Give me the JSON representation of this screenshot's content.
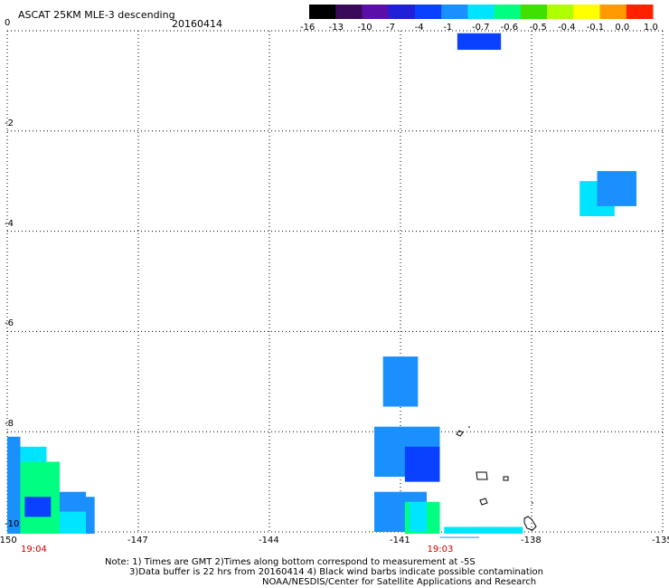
{
  "header": {
    "product_title": "ASCAT 25KM MLE-3 descending",
    "date": "20160414"
  },
  "colorbar": {
    "labels": [
      "-16",
      "-13",
      "-10",
      "-7",
      "-4",
      "-1",
      "-0.7",
      "-0.6",
      "-0.5",
      "-0.4",
      "-0.1",
      "0.0",
      "1.0"
    ],
    "colors": [
      "#000000",
      "#3a0a5a",
      "#5a10a8",
      "#2020d8",
      "#0a40ff",
      "#1a90ff",
      "#00e5ff",
      "#00ff80",
      "#40e000",
      "#b0ff00",
      "#ffff00",
      "#ff9a00",
      "#ff2000"
    ]
  },
  "map": {
    "x_ticks": [
      "-150",
      "-147",
      "-144",
      "-141",
      "-138",
      "-135"
    ],
    "y_ticks": [
      "0",
      "-2",
      "-4",
      "-6",
      "-8",
      "-10"
    ],
    "lon_range": [
      -150,
      -135
    ],
    "lat_range": [
      -10,
      0
    ],
    "grid": "dotted",
    "time_labels": [
      {
        "lon": -150,
        "text": "19:04"
      },
      {
        "lon": -140.7,
        "text": "19:03"
      }
    ],
    "cells": [
      {
        "lon": [
          -139.7,
          -138.7
        ],
        "lat": [
          -0.38,
          -0.05
        ],
        "color": "#0a40ff"
      },
      {
        "lon": [
          -136.9,
          -136.1
        ],
        "lat": [
          -3.0,
          -3.7
        ],
        "color": "#00e5ff"
      },
      {
        "lon": [
          -136.5,
          -135.6
        ],
        "lat": [
          -2.8,
          -3.5
        ],
        "color": "#1a90ff"
      },
      {
        "lon": [
          -141.4,
          -140.6
        ],
        "lat": [
          -6.5,
          -7.5
        ],
        "color": "#1a90ff"
      },
      {
        "lon": [
          -141.6,
          -140.1
        ],
        "lat": [
          -7.9,
          -8.9
        ],
        "color": "#1a90ff"
      },
      {
        "lon": [
          -140.9,
          -140.1
        ],
        "lat": [
          -8.3,
          -9.0
        ],
        "color": "#0a40ff"
      },
      {
        "lon": [
          -141.6,
          -140.4
        ],
        "lat": [
          -9.2,
          -10.0
        ],
        "color": "#1a90ff"
      },
      {
        "lon": [
          -140.9,
          -140.1
        ],
        "lat": [
          -9.4,
          -10.1
        ],
        "color": "#00ff80"
      },
      {
        "lon": [
          -140.8,
          -140.4
        ],
        "lat": [
          -9.4,
          -10.0
        ],
        "color": "#00e5ff"
      },
      {
        "lon": [
          -140.0,
          -138.6
        ],
        "lat": [
          -9.9,
          -10.1
        ],
        "color": "#00e5ff"
      },
      {
        "lon": [
          -140.1,
          -139.2
        ],
        "lat": [
          -10.1,
          -10.6
        ],
        "color": "#1a90ff"
      },
      {
        "lon": [
          -139.3,
          -138.2
        ],
        "lat": [
          -9.9,
          -10.6
        ],
        "color": "#00e5ff"
      },
      {
        "lon": [
          -150.0,
          -149.7
        ],
        "lat": [
          -8.1,
          -10.1
        ],
        "color": "#1a90ff"
      },
      {
        "lon": [
          -149.7,
          -149.1
        ],
        "lat": [
          -8.3,
          -9.0
        ],
        "color": "#00e5ff"
      },
      {
        "lon": [
          -149.7,
          -148.8
        ],
        "lat": [
          -8.6,
          -10.1
        ],
        "color": "#00ff80"
      },
      {
        "lon": [
          -148.8,
          -148.2
        ],
        "lat": [
          -9.6,
          -10.1
        ],
        "color": "#00e5ff"
      },
      {
        "lon": [
          -148.8,
          -148.2
        ],
        "lat": [
          -9.2,
          -9.6
        ],
        "color": "#1a90ff"
      },
      {
        "lon": [
          -148.2,
          -148.0
        ],
        "lat": [
          -9.3,
          -10.1
        ],
        "color": "#1a90ff"
      },
      {
        "lon": [
          -149.6,
          -149.0
        ],
        "lat": [
          -9.3,
          -9.7
        ],
        "color": "#0a40ff"
      }
    ]
  },
  "notes": {
    "line1": "Note: 1) Times are GMT 2)Times along bottom correspond to measurement at -5S",
    "line2": "3)Data buffer is 22 hrs from 20160414 4) Black wind barbs indicate possible contamination",
    "line3": "NOAA/NESDIS/Center for Satellite Applications and Research"
  }
}
